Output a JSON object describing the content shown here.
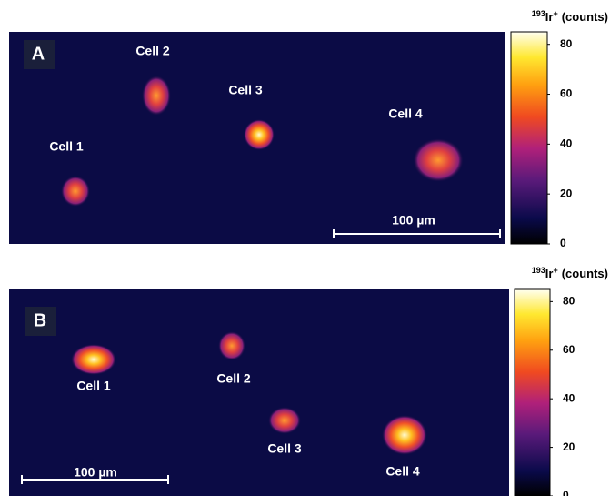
{
  "panels": [
    {
      "label": "A",
      "cells": [
        "Cell 1",
        "Cell 2",
        "Cell 3",
        "Cell 4"
      ],
      "scale_bar": "100 µm",
      "colorbar": {
        "isotope": "193",
        "element": "Ir",
        "charge": "+",
        "unit": "(counts)",
        "lim": [
          0,
          85
        ],
        "ticks": [
          0,
          20,
          40,
          60,
          80
        ]
      }
    },
    {
      "label": "B",
      "cells": [
        "Cell 1",
        "Cell 2",
        "Cell 3",
        "Cell 4"
      ],
      "scale_bar": "100 µm",
      "colorbar": {
        "isotope": "193",
        "element": "Ir",
        "charge": "+",
        "unit": "(counts)",
        "lim": [
          0,
          85
        ],
        "ticks": [
          0,
          20,
          40,
          60,
          80
        ]
      }
    }
  ]
}
